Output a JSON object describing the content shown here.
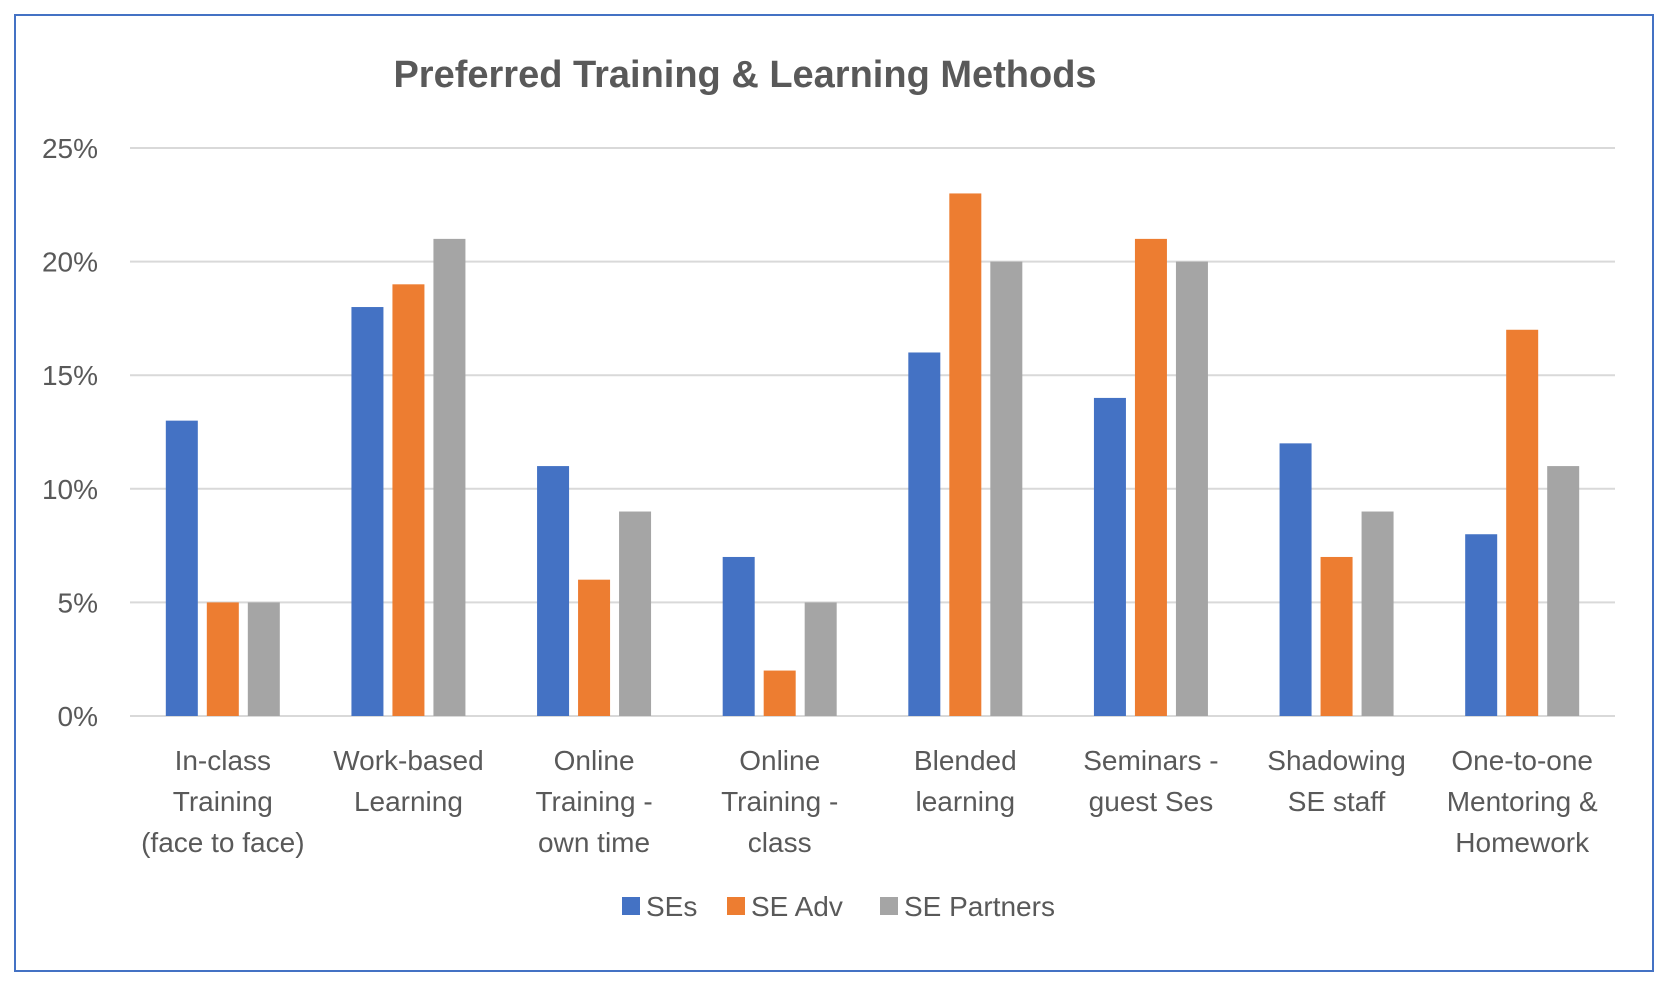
{
  "chart_data": {
    "type": "bar",
    "title": "Preferred Training & Learning Methods",
    "xlabel": "",
    "ylabel": "",
    "ylim": [
      0,
      25
    ],
    "yticks": [
      "0%",
      "5%",
      "10%",
      "15%",
      "20%",
      "25%"
    ],
    "grid": true,
    "legend_position": "bottom",
    "categories": [
      [
        "In-class",
        "Training",
        "(face to face)"
      ],
      [
        "Work-based",
        "Learning"
      ],
      [
        "Online",
        "Training -",
        "own time"
      ],
      [
        "Online",
        "Training -",
        "class"
      ],
      [
        "Blended",
        "learning"
      ],
      [
        "Seminars -",
        "guest Ses"
      ],
      [
        "Shadowing",
        "SE staff"
      ],
      [
        "One-to-one",
        "Mentoring &",
        "Homework"
      ]
    ],
    "series": [
      {
        "name": "SEs",
        "color": "#4472c4",
        "values": [
          13,
          18,
          11,
          7,
          16,
          14,
          12,
          8
        ]
      },
      {
        "name": "SE Adv",
        "color": "#ed7d31",
        "values": [
          5,
          19,
          6,
          2,
          23,
          21,
          7,
          17
        ]
      },
      {
        "name": "SE Partners",
        "color": "#a5a5a5",
        "values": [
          5,
          21,
          9,
          5,
          20,
          20,
          9,
          11
        ]
      }
    ]
  }
}
